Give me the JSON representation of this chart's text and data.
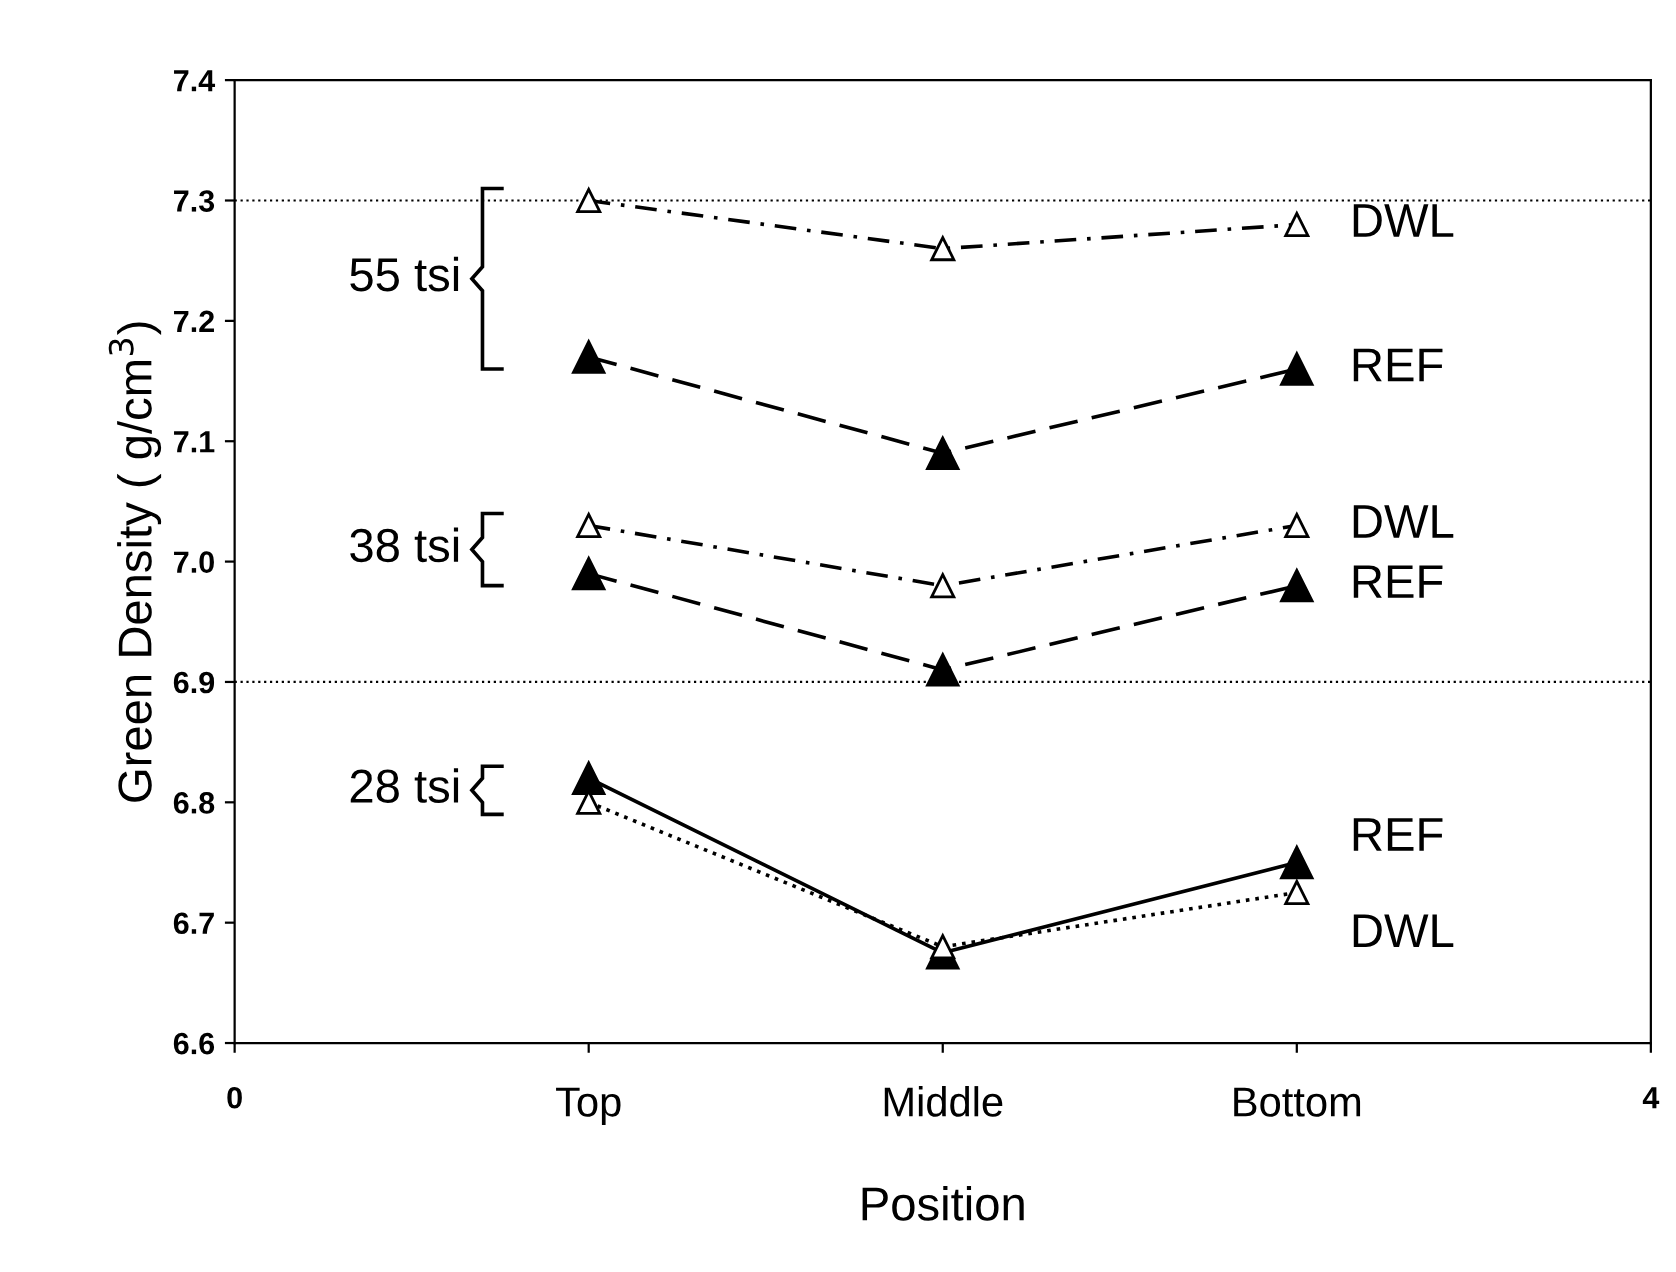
{
  "chart_data": {
    "type": "line",
    "xlabel": "Position",
    "ylabel": "Green Density ( g/cm$^{3}$)",
    "x": [
      1,
      2,
      3
    ],
    "xlim": [
      0,
      4
    ],
    "xticks": [
      0,
      {
        "value": 1,
        "label": "Top"
      },
      {
        "value": 2,
        "label": "Middle"
      },
      {
        "value": 3,
        "label": "Bottom"
      },
      4
    ],
    "ylim": [
      6.6,
      7.4
    ],
    "yticks": [
      6.6,
      6.7,
      6.8,
      6.9,
      {
        "value": 7.0,
        "label": "7.0"
      },
      7.1,
      7.2,
      7.3,
      7.4
    ],
    "series": [
      {
        "name": "DWL",
        "color": "#000000",
        "values": [
          7.3,
          7.26,
          7.28
        ],
        "marker": "triangle",
        "line_style": "dashdot"
      },
      {
        "name": "REF",
        "color": "#000000",
        "values": [
          7.17,
          7.09,
          7.16
        ],
        "marker": "triangle",
        "line_style": "dashed"
      },
      {
        "name": "DWL",
        "color": "#000000",
        "values": [
          7.03,
          6.98,
          7.03
        ],
        "marker": "triangle",
        "line_style": "dashdot"
      },
      {
        "name": "REF",
        "color": "#000000",
        "values": [
          6.99,
          6.91,
          6.98
        ],
        "marker": "triangle",
        "line_style": "dashed"
      },
      {
        "name": "REF",
        "color": "#000000",
        "values": [
          6.82,
          6.675,
          6.75
        ],
        "marker": "triangle",
        "line_style": "solid"
      },
      {
        "name": "DWL",
        "color": "#000000",
        "values": [
          6.8,
          6.68,
          6.725
        ],
        "marker": "triangle",
        "line_style": "dotted"
      }
    ],
    "annotations": [
      "55 tsi",
      "38 tsi",
      "28 tsi"
    ],
    "ref_lines": [
      {
        "axis": "y",
        "value": 7.3,
        "line_style": "dotted",
        "color": "#000000"
      },
      {
        "axis": "y",
        "value": 6.9,
        "line_style": "dotted",
        "color": "#000000"
      }
    ],
    "grid": false,
    "legend": false
  }
}
